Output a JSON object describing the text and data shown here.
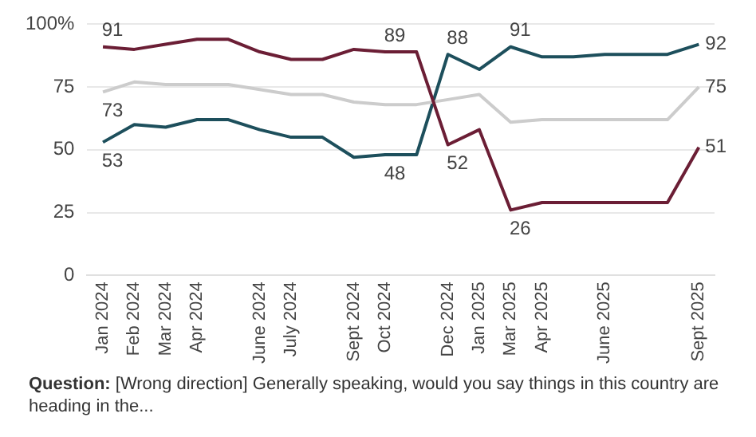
{
  "chart_data": {
    "type": "line",
    "categories": [
      "Jan 2024",
      "Feb 2024",
      "Mar 2024",
      "Apr 2024",
      null,
      "June 2024",
      "July 2024",
      null,
      "Sept 2024",
      "Oct 2024",
      null,
      "Dec 2024",
      "Jan 2025",
      "Mar 2025",
      "Apr 2025",
      null,
      "June 2025",
      null,
      null,
      "Sept 2025"
    ],
    "series": [
      {
        "color": "#6b1e35",
        "values": [
          91,
          90,
          92,
          94,
          94,
          89,
          86,
          86,
          90,
          89,
          89,
          52,
          58,
          26,
          29,
          29,
          29,
          29,
          29,
          51
        ],
        "value_labels": [
          "91",
          null,
          null,
          null,
          null,
          null,
          null,
          null,
          null,
          "89",
          null,
          "52",
          null,
          "26",
          null,
          null,
          null,
          null,
          null,
          "51"
        ]
      },
      {
        "color": "#cccccc",
        "values": [
          73,
          77,
          76,
          76,
          76,
          74,
          72,
          72,
          69,
          68,
          68,
          70,
          72,
          61,
          62,
          62,
          62,
          62,
          62,
          75
        ],
        "value_labels": [
          "73",
          null,
          null,
          null,
          null,
          null,
          null,
          null,
          null,
          null,
          null,
          null,
          null,
          null,
          null,
          null,
          null,
          null,
          null,
          "75"
        ]
      },
      {
        "color": "#1d4f5c",
        "values": [
          53,
          60,
          59,
          62,
          62,
          58,
          55,
          55,
          47,
          48,
          48,
          88,
          82,
          91,
          87,
          87,
          88,
          88,
          88,
          92
        ],
        "value_labels": [
          "53",
          null,
          null,
          null,
          null,
          null,
          null,
          null,
          null,
          "48",
          null,
          "88",
          null,
          "91",
          null,
          null,
          null,
          null,
          null,
          "92"
        ]
      }
    ],
    "ylim": [
      0,
      100
    ],
    "yticks": [
      0,
      25,
      50,
      75,
      {
        "value": 100,
        "label": "100%"
      }
    ],
    "grid": "y",
    "legend": false,
    "marker": "none",
    "line_style": "solid",
    "annotations": [
      "Question: [Wrong direction] Generally speaking, would you say things in this country are heading in the..."
    ]
  }
}
